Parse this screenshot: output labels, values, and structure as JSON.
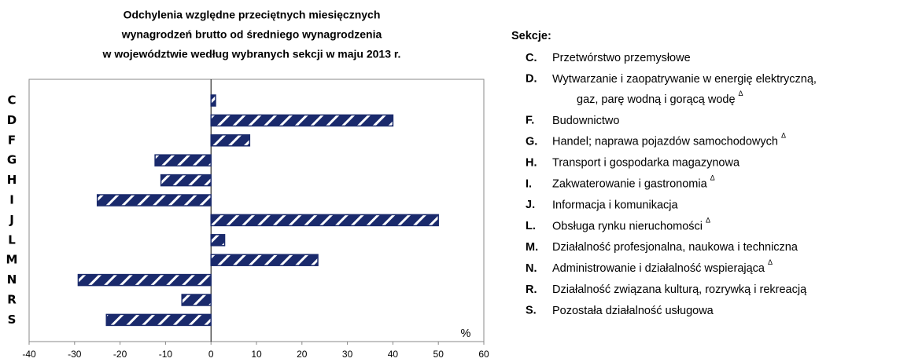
{
  "chart_data": {
    "type": "bar",
    "orientation": "horizontal",
    "title_lines": [
      "Odchylenia względne przeciętnych miesięcznych",
      "wynagrodzeń brutto od średniego wynagrodzenia",
      "w województwie według wybranych sekcji w maju 2013 r."
    ],
    "categories": [
      "C",
      "D",
      "F",
      "G",
      "H",
      "I",
      "J",
      "L",
      "M",
      "N",
      "R",
      "S"
    ],
    "values": [
      1,
      40,
      8.5,
      -12.3,
      -11,
      -25,
      50,
      3,
      23.5,
      -29.2,
      -6.4,
      -23
    ],
    "color": "#1a2a6c",
    "xlim": [
      -40,
      60
    ],
    "xticks": [
      -40,
      -30,
      -20,
      -10,
      0,
      10,
      20,
      30,
      40,
      50,
      60
    ],
    "unit_label": "%",
    "legend_title": "Sekcje:",
    "legend_items": [
      {
        "code": "C.",
        "lines": [
          "Przetwórstwo przemysłowe"
        ]
      },
      {
        "code": "D.",
        "lines": [
          "Wytwarzanie i zaopatrywanie w energię elektryczną,",
          "gaz, parę wodną i gorącą wodę"
        ],
        "note": "Δ"
      },
      {
        "code": "F.",
        "lines": [
          "Budownictwo"
        ]
      },
      {
        "code": "G.",
        "lines": [
          "Handel; naprawa pojazdów samochodowych"
        ],
        "note": "Δ"
      },
      {
        "code": "H.",
        "lines": [
          "Transport i gospodarka magazynowa"
        ]
      },
      {
        "code": "I.",
        "lines": [
          "Zakwaterowanie i gastronomia"
        ],
        "note": "Δ"
      },
      {
        "code": "J.",
        "lines": [
          "Informacja i komunikacja"
        ]
      },
      {
        "code": "L.",
        "lines": [
          "Obsługa rynku nieruchomości"
        ],
        "note": "Δ"
      },
      {
        "code": "M.",
        "lines": [
          "Działalność profesjonalna, naukowa i techniczna"
        ]
      },
      {
        "code": "N.",
        "lines": [
          "Administrowanie i działalność wspierająca"
        ],
        "note": "Δ"
      },
      {
        "code": "R.",
        "lines": [
          "Działalność związana kulturą, rozrywką i rekreacją"
        ]
      },
      {
        "code": "S.",
        "lines": [
          "Pozostała działalność usługowa"
        ]
      }
    ]
  }
}
